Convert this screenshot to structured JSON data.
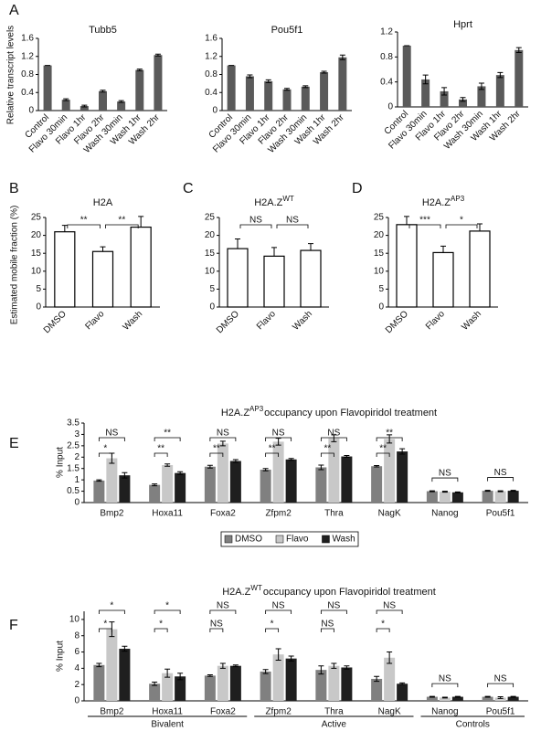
{
  "chart_data": [
    {
      "type": "bar",
      "panel": "A",
      "title": "Tubb5",
      "y_label": "Relative transcript levels",
      "categories": [
        "Control",
        "Flavo 30min",
        "Flavo 1hr",
        "Flavo 2hr",
        "Wash 30min",
        "Wash 1hr",
        "Wash 2hr"
      ],
      "values": [
        1.0,
        0.24,
        0.1,
        0.43,
        0.2,
        0.9,
        1.23
      ],
      "errors": [
        0,
        0.02,
        0.02,
        0.02,
        0.02,
        0.02,
        0.02
      ],
      "color": "#5a5a5a",
      "ylim": [
        0,
        1.6
      ],
      "yticks": [
        0,
        0.4,
        0.8,
        1.2,
        1.6
      ]
    },
    {
      "type": "bar",
      "title": "Pou5f1",
      "categories": [
        "Control",
        "Flavo 30min",
        "Flavo 1hr",
        "Flavo 2hr",
        "Wash 30min",
        "Wash 1hr",
        "Wash 2hr"
      ],
      "values": [
        1.0,
        0.76,
        0.65,
        0.47,
        0.53,
        0.85,
        1.18
      ],
      "errors": [
        0,
        0.03,
        0.03,
        0.02,
        0.02,
        0.02,
        0.05
      ],
      "color": "#5a5a5a",
      "ylim": [
        0,
        1.6
      ],
      "yticks": [
        0,
        0.4,
        0.8,
        1.2,
        1.6
      ]
    },
    {
      "type": "bar",
      "title": "Hprt",
      "categories": [
        "Control",
        "Flavo 30min",
        "Flavo 1hr",
        "Flavo 2hr",
        "Wash 30min",
        "Wash 1hr",
        "Wash 2hr"
      ],
      "values": [
        0.98,
        0.44,
        0.25,
        0.12,
        0.33,
        0.51,
        0.91
      ],
      "errors": [
        0,
        0.07,
        0.06,
        0.03,
        0.05,
        0.04,
        0.04
      ],
      "color": "#5a5a5a",
      "ylim": [
        0,
        1.2
      ],
      "yticks": [
        0,
        0.4,
        0.8,
        1.2
      ]
    },
    {
      "type": "bar",
      "panel": "B",
      "title": "H2A",
      "y_label": "Estimated mobile fraction (%)",
      "categories": [
        "DMSO",
        "Flavo",
        "Wash"
      ],
      "values": [
        21,
        15.5,
        22.3
      ],
      "errors": [
        1.8,
        1.3,
        3
      ],
      "color": "#ffffff",
      "edge_color": "#000000",
      "ylim": [
        0,
        25
      ],
      "yticks": [
        0,
        5,
        10,
        15,
        20,
        25
      ],
      "comparisons": [
        {
          "pair": [
            "DMSO",
            "Flavo"
          ],
          "text": "**"
        },
        {
          "pair": [
            "Flavo",
            "Wash"
          ],
          "text": "**"
        }
      ]
    },
    {
      "type": "bar",
      "panel": "C",
      "title": "H2A.Z",
      "title_sup": "WT",
      "categories": [
        "DMSO",
        "Flavo",
        "Wash"
      ],
      "values": [
        16.3,
        14.2,
        15.8
      ],
      "errors": [
        2.7,
        2.4,
        1.9
      ],
      "color": "#ffffff",
      "edge_color": "#000000",
      "ylim": [
        0,
        25
      ],
      "yticks": [
        0,
        5,
        10,
        15,
        20,
        25
      ],
      "comparisons": [
        {
          "pair": [
            "DMSO",
            "Flavo"
          ],
          "text": "NS"
        },
        {
          "pair": [
            "Flavo",
            "Wash"
          ],
          "text": "NS"
        }
      ]
    },
    {
      "type": "bar",
      "panel": "D",
      "title": "H2A.Z",
      "title_sup": "AP3",
      "categories": [
        "DMSO",
        "Flavo",
        "Wash"
      ],
      "values": [
        23,
        15.2,
        21.2
      ],
      "errors": [
        2.3,
        1.8,
        2
      ],
      "color": "#ffffff",
      "edge_color": "#000000",
      "ylim": [
        0,
        25
      ],
      "yticks": [
        0,
        5,
        10,
        15,
        20,
        25
      ],
      "comparisons": [
        {
          "pair": [
            "DMSO",
            "Flavo"
          ],
          "text": "***"
        },
        {
          "pair": [
            "Flavo",
            "Wash"
          ],
          "text": "*"
        }
      ]
    },
    {
      "type": "bar",
      "panel": "E",
      "title": "H2A.Z",
      "title_sup": "AP3",
      "title_rest": "occupancy upon Flavopiridol treatment",
      "y_label": "% Input",
      "categories": [
        "Bmp2",
        "Hoxa11",
        "Foxa2",
        "Zfpm2",
        "Thra",
        "NagK",
        "Nanog",
        "Pou5f1"
      ],
      "series": [
        {
          "name": "DMSO",
          "color": "#808080",
          "values": [
            0.97,
            0.78,
            1.58,
            1.45,
            1.55,
            1.6,
            0.5,
            0.52
          ],
          "errors": [
            0.03,
            0.04,
            0.06,
            0.05,
            0.1,
            0.03,
            0.02,
            0.02
          ]
        },
        {
          "name": "Flavo",
          "color": "#c8c8c8",
          "values": [
            1.95,
            1.65,
            2.6,
            2.68,
            2.83,
            2.8,
            0.48,
            0.5
          ],
          "errors": [
            0.22,
            0.05,
            0.1,
            0.15,
            0.15,
            0.18,
            0.02,
            0.02
          ]
        },
        {
          "name": "Wash",
          "color": "#1f1f1f",
          "values": [
            1.2,
            1.3,
            1.83,
            1.9,
            2.03,
            2.25,
            0.45,
            0.52
          ],
          "errors": [
            0.12,
            0.06,
            0.06,
            0.04,
            0.04,
            0.12,
            0.02,
            0.02
          ]
        }
      ],
      "ylim": [
        0,
        3.5
      ],
      "yticks": [
        0,
        0.5,
        1,
        1.5,
        2,
        2.5,
        3,
        3.5
      ],
      "legend": "bottom",
      "comparisons": [
        {
          "category": "Bmp2",
          "pair": [
            "DMSO",
            "Wash"
          ],
          "text": "NS"
        },
        {
          "category": "Bmp2",
          "pair": [
            "DMSO",
            "Flavo"
          ],
          "text": "*"
        },
        {
          "category": "Hoxa11",
          "pair": [
            "DMSO",
            "Wash"
          ],
          "text": "**"
        },
        {
          "category": "Hoxa11",
          "pair": [
            "DMSO",
            "Flavo"
          ],
          "text": "**"
        },
        {
          "category": "Foxa2",
          "pair": [
            "DMSO",
            "Wash"
          ],
          "text": "NS"
        },
        {
          "category": "Foxa2",
          "pair": [
            "DMSO",
            "Flavo"
          ],
          "text": "**"
        },
        {
          "category": "Zfpm2",
          "pair": [
            "DMSO",
            "Wash"
          ],
          "text": "NS"
        },
        {
          "category": "Zfpm2",
          "pair": [
            "DMSO",
            "Flavo"
          ],
          "text": "**"
        },
        {
          "category": "Thra",
          "pair": [
            "DMSO",
            "Wash"
          ],
          "text": "NS"
        },
        {
          "category": "Thra",
          "pair": [
            "DMSO",
            "Flavo"
          ],
          "text": "**"
        },
        {
          "category": "NagK",
          "pair": [
            "DMSO",
            "Wash"
          ],
          "text": "**"
        },
        {
          "category": "NagK",
          "pair": [
            "DMSO",
            "Flavo"
          ],
          "text": "**"
        },
        {
          "category": "Nanog",
          "pair": [
            "DMSO",
            "Wash"
          ],
          "text": "NS"
        },
        {
          "category": "Pou5f1",
          "pair": [
            "DMSO",
            "Wash"
          ],
          "text": "NS"
        }
      ]
    },
    {
      "type": "bar",
      "panel": "F",
      "title": "H2A.Z",
      "title_sup": "WT",
      "title_rest": "occupancy upon Flavopiridol treatment",
      "y_label": "% Input",
      "categories": [
        "Bmp2",
        "Hoxa11",
        "Foxa2",
        "Zfpm2",
        "Thra",
        "NagK",
        "Nanog",
        "Pou5f1"
      ],
      "series": [
        {
          "name": "DMSO",
          "color": "#808080",
          "values": [
            4.4,
            2.1,
            3.1,
            3.6,
            3.8,
            2.7,
            0.5,
            0.5
          ],
          "errors": [
            0.2,
            0.2,
            0.1,
            0.25,
            0.5,
            0.3,
            0.05,
            0.05
          ]
        },
        {
          "name": "Flavo",
          "color": "#c8c8c8",
          "values": [
            8.8,
            3.4,
            4.3,
            5.7,
            4.3,
            5.3,
            0.4,
            0.4
          ],
          "errors": [
            0.9,
            0.5,
            0.3,
            0.7,
            0.3,
            0.7,
            0.05,
            0.1
          ]
        },
        {
          "name": "Wash",
          "color": "#1f1f1f",
          "values": [
            6.4,
            3.0,
            4.3,
            5.2,
            4.1,
            2.1,
            0.5,
            0.5
          ],
          "errors": [
            0.3,
            0.4,
            0.1,
            0.3,
            0.2,
            0.1,
            0.05,
            0.05
          ]
        }
      ],
      "ylim": [
        0,
        11
      ],
      "yticks": [
        0,
        2,
        4,
        6,
        8,
        10
      ],
      "comparisons": [
        {
          "category": "Bmp2",
          "pair": [
            "DMSO",
            "Wash"
          ],
          "text": "*"
        },
        {
          "category": "Bmp2",
          "pair": [
            "DMSO",
            "Flavo"
          ],
          "text": "*"
        },
        {
          "category": "Hoxa11",
          "pair": [
            "DMSO",
            "Wash"
          ],
          "text": "*"
        },
        {
          "category": "Hoxa11",
          "pair": [
            "DMSO",
            "Flavo"
          ],
          "text": "*"
        },
        {
          "category": "Foxa2",
          "pair": [
            "DMSO",
            "Wash"
          ],
          "text": "NS"
        },
        {
          "category": "Foxa2",
          "pair": [
            "DMSO",
            "Flavo"
          ],
          "text": "NS"
        },
        {
          "category": "Zfpm2",
          "pair": [
            "DMSO",
            "Wash"
          ],
          "text": "NS"
        },
        {
          "category": "Zfpm2",
          "pair": [
            "DMSO",
            "Flavo"
          ],
          "text": "*"
        },
        {
          "category": "Thra",
          "pair": [
            "DMSO",
            "Wash"
          ],
          "text": "NS"
        },
        {
          "category": "Thra",
          "pair": [
            "DMSO",
            "Flavo"
          ],
          "text": "NS"
        },
        {
          "category": "NagK",
          "pair": [
            "DMSO",
            "Wash"
          ],
          "text": "NS"
        },
        {
          "category": "NagK",
          "pair": [
            "DMSO",
            "Flavo"
          ],
          "text": "*"
        },
        {
          "category": "Nanog",
          "pair": [
            "DMSO",
            "Wash"
          ],
          "text": "NS"
        },
        {
          "category": "Pou5f1",
          "pair": [
            "DMSO",
            "Wash"
          ],
          "text": "NS"
        }
      ],
      "groups": [
        {
          "label": "Bivalent",
          "members": [
            "Bmp2",
            "Hoxa11",
            "Foxa2"
          ]
        },
        {
          "label": "Active",
          "members": [
            "Zfpm2",
            "Thra",
            "NagK"
          ]
        },
        {
          "label": "Controls",
          "members": [
            "Nanog",
            "Pou5f1"
          ]
        }
      ]
    }
  ]
}
